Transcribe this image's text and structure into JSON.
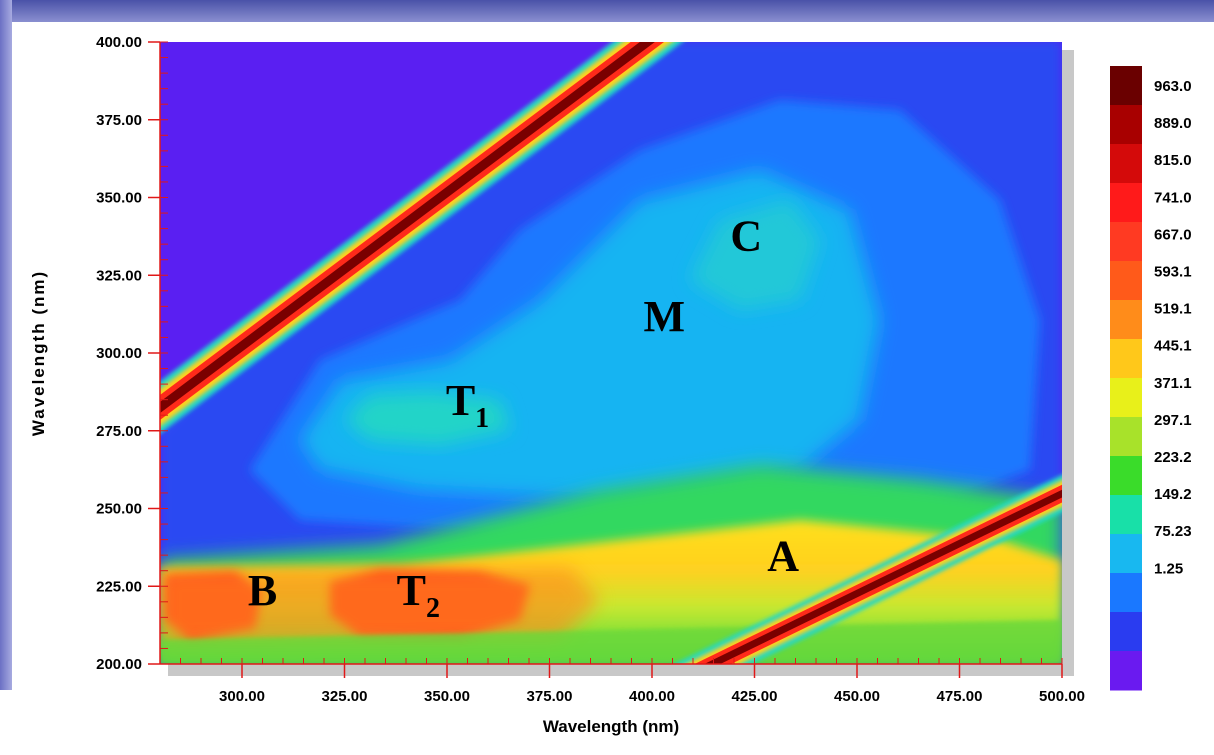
{
  "chart_data": {
    "type": "heatmap",
    "title": "",
    "xlabel": "Wavelength (nm)",
    "ylabel": "Wavelength (nm)",
    "xlim": [
      280,
      500
    ],
    "ylim": [
      200,
      400
    ],
    "x_ticks": [
      "300.00",
      "325.00",
      "350.00",
      "375.00",
      "400.00",
      "425.00",
      "450.00",
      "475.00",
      "500.00"
    ],
    "x_tick_values": [
      300,
      325,
      350,
      375,
      400,
      425,
      450,
      475,
      500
    ],
    "y_ticks": [
      "200.00",
      "225.00",
      "250.00",
      "275.00",
      "300.00",
      "325.00",
      "350.00",
      "375.00",
      "400.00"
    ],
    "y_tick_values": [
      200,
      225,
      250,
      275,
      300,
      325,
      350,
      375,
      400
    ],
    "colorbar": {
      "labels": [
        "963.0",
        "889.0",
        "815.0",
        "741.0",
        "667.0",
        "593.1",
        "519.1",
        "445.1",
        "371.1",
        "297.1",
        "223.2",
        "149.2",
        "75.23",
        "1.25"
      ],
      "levels": [
        963.0,
        889.0,
        815.0,
        741.0,
        667.0,
        593.1,
        519.1,
        445.1,
        371.1,
        297.1,
        223.2,
        149.2,
        75.23,
        1.25
      ],
      "colors": [
        "#6a0000",
        "#a80000",
        "#d40a0a",
        "#ff1a1a",
        "#ff3a22",
        "#ff5a1a",
        "#ff8c1a",
        "#ffc81a",
        "#e8f01a",
        "#a8e22a",
        "#3adc2a",
        "#18e0a8",
        "#18b8f0",
        "#1a78ff",
        "#2a3cf0",
        "#6a1af0"
      ]
    },
    "regions": [
      {
        "label": "C",
        "x": 423,
        "y": 333
      },
      {
        "label": "M",
        "x": 403,
        "y": 307
      },
      {
        "label": "T",
        "sub": "1",
        "x": 355,
        "y": 280
      },
      {
        "label": "T",
        "sub": "2",
        "x": 343,
        "y": 219
      },
      {
        "label": "B",
        "x": 305,
        "y": 219
      },
      {
        "label": "A",
        "x": 432,
        "y": 230
      }
    ],
    "grid": false,
    "legend": "right"
  }
}
